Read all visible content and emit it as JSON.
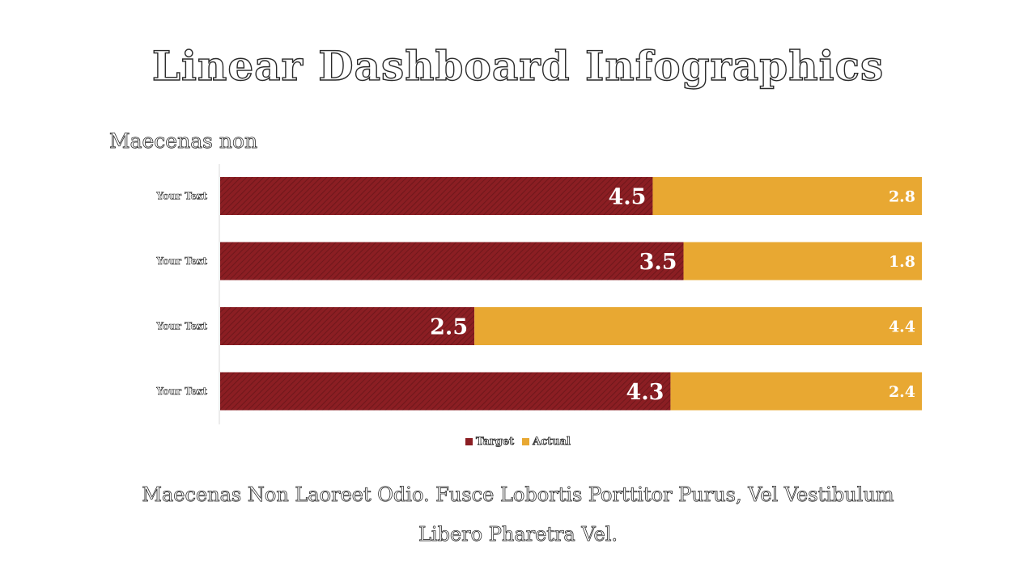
{
  "title": "Linear Dashboard Infographics",
  "subtitle": "Maecenas non",
  "caption": "Maecenas Non Laoreet Odio. Fusce Lobortis Porttitor Purus, Vel Vestibulum Libero Pharetra Vel.",
  "colors": {
    "target": "#8b1e23",
    "target_stripe": "#a83a3e",
    "actual": "#e8a832",
    "label_light": "#ffffff",
    "axis_line": "#d9d9d9"
  },
  "chart_data": {
    "type": "bar",
    "orientation": "horizontal",
    "stacked": true,
    "categories": [
      "Your Text",
      "Your Text",
      "Your Text",
      "Your Text"
    ],
    "series": [
      {
        "name": "Target",
        "values": [
          4.5,
          3.5,
          2.5,
          4.3
        ]
      },
      {
        "name": "Actual",
        "values": [
          2.8,
          1.8,
          4.4,
          2.4
        ]
      }
    ],
    "legend_position": "bottom",
    "grid": false
  }
}
